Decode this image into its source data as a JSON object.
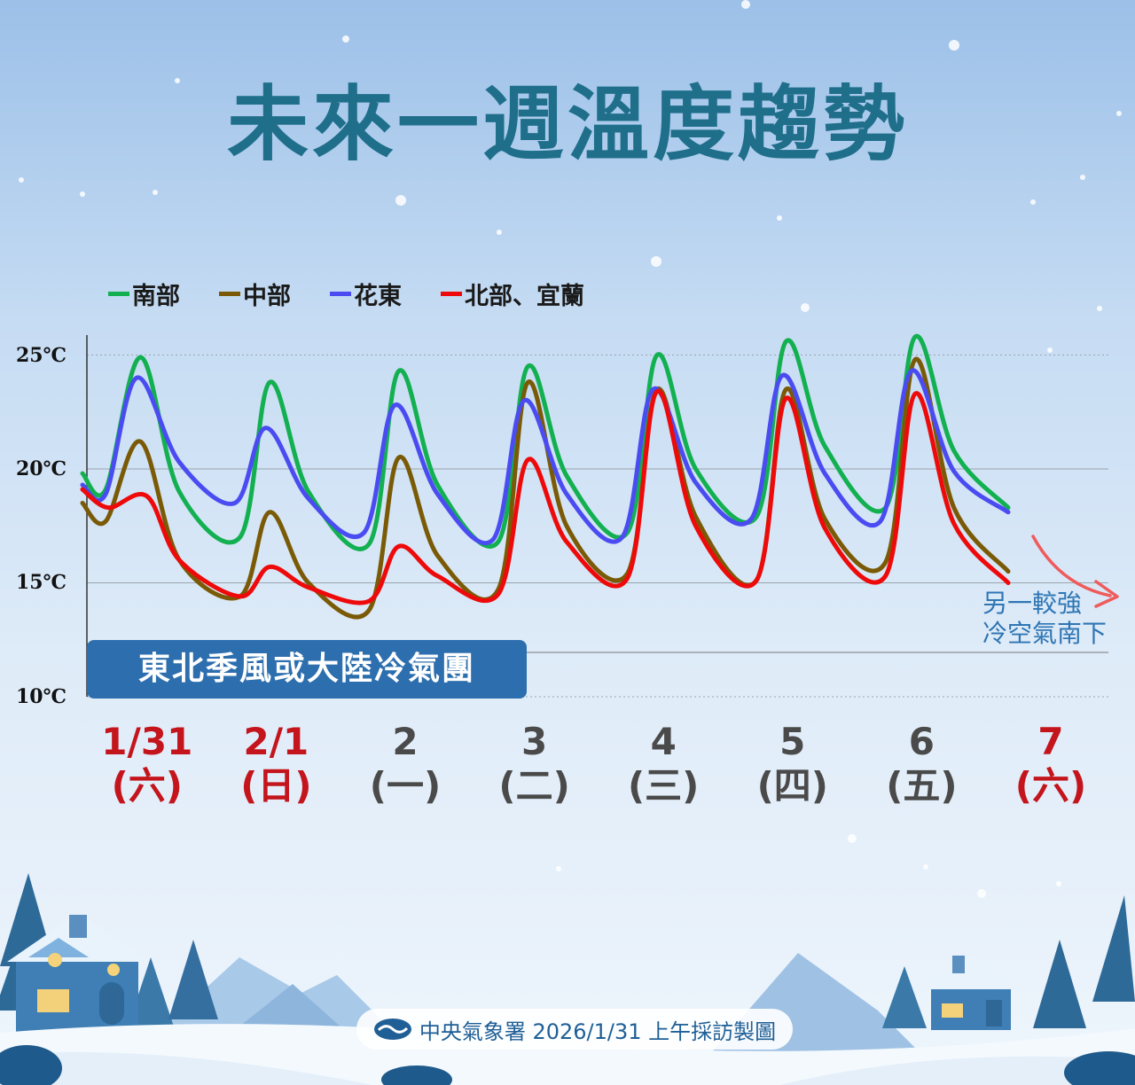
{
  "title": "未來一週溫度趨勢",
  "legend": [
    {
      "label": "南部",
      "color": "#12b050"
    },
    {
      "label": "中部",
      "color": "#7a5a06"
    },
    {
      "label": "花東",
      "color": "#4a4cf2"
    },
    {
      "label": "北部、宜蘭",
      "color": "#ee0a0a"
    }
  ],
  "y_labels": [
    "25℃",
    "20℃",
    "15℃",
    "10℃"
  ],
  "banner": "東北季風或大陸冷氣團",
  "note": {
    "line1": "另一較強",
    "line2": "冷空氣南下"
  },
  "footer": {
    "logo_icon": "cwa-logo-icon",
    "text": "中央氣象署  2026/1/31 上午採訪製圖"
  },
  "chart_data": {
    "type": "line",
    "title": "未來一週溫度趨勢",
    "ylim": [
      10,
      26
    ],
    "yticks": [
      10,
      15,
      20,
      25
    ],
    "grid": true,
    "legend_position": "top-left",
    "categories": [
      {
        "date": "1/31",
        "weekday": "(六)",
        "color": "#c4151d"
      },
      {
        "date": "2/1",
        "weekday": "(日)",
        "color": "#c4151d"
      },
      {
        "date": "2",
        "weekday": "(一)",
        "color": "#4a4a4a"
      },
      {
        "date": "3",
        "weekday": "(二)",
        "color": "#4a4a4a"
      },
      {
        "date": "4",
        "weekday": "(三)",
        "color": "#4a4a4a"
      },
      {
        "date": "5",
        "weekday": "(四)",
        "color": "#4a4a4a"
      },
      {
        "date": "6",
        "weekday": "(五)",
        "color": "#4a4a4a"
      },
      {
        "date": "7",
        "weekday": "(六)",
        "color": "#c4151d"
      }
    ],
    "x_note": "x values are days since 1/31 00:00 (category i centred at day i + 0.5)",
    "series": [
      {
        "name": "南部",
        "color": "#12b050",
        "points": [
          [
            0,
            19.8
          ],
          [
            0.18,
            19.1
          ],
          [
            0.45,
            24.9
          ],
          [
            0.75,
            19.0
          ],
          [
            1.22,
            17.0
          ],
          [
            1.45,
            23.8
          ],
          [
            1.75,
            19.0
          ],
          [
            2.22,
            16.7
          ],
          [
            2.45,
            24.3
          ],
          [
            2.75,
            19.3
          ],
          [
            3.22,
            16.8
          ],
          [
            3.45,
            24.5
          ],
          [
            3.75,
            19.7
          ],
          [
            4.22,
            17.2
          ],
          [
            4.45,
            25.0
          ],
          [
            4.75,
            20.0
          ],
          [
            5.22,
            17.9
          ],
          [
            5.45,
            25.6
          ],
          [
            5.75,
            21.0
          ],
          [
            6.22,
            18.3
          ],
          [
            6.45,
            25.8
          ],
          [
            6.75,
            20.8
          ],
          [
            7.17,
            18.3
          ]
        ]
      },
      {
        "name": "中部",
        "color": "#7a5a06",
        "points": [
          [
            0,
            18.5
          ],
          [
            0.18,
            17.7
          ],
          [
            0.45,
            21.2
          ],
          [
            0.75,
            16.0
          ],
          [
            1.22,
            14.4
          ],
          [
            1.45,
            18.1
          ],
          [
            1.75,
            15.0
          ],
          [
            2.22,
            13.8
          ],
          [
            2.45,
            20.5
          ],
          [
            2.75,
            16.2
          ],
          [
            3.22,
            14.7
          ],
          [
            3.45,
            23.8
          ],
          [
            3.75,
            17.5
          ],
          [
            4.22,
            15.4
          ],
          [
            4.45,
            23.5
          ],
          [
            4.75,
            17.9
          ],
          [
            5.22,
            15.1
          ],
          [
            5.45,
            23.5
          ],
          [
            5.75,
            17.8
          ],
          [
            6.22,
            15.9
          ],
          [
            6.45,
            24.8
          ],
          [
            6.75,
            18.3
          ],
          [
            7.17,
            15.5
          ]
        ]
      },
      {
        "name": "花東",
        "color": "#4a4cf2",
        "points": [
          [
            0,
            19.3
          ],
          [
            0.18,
            18.9
          ],
          [
            0.42,
            24.0
          ],
          [
            0.75,
            20.3
          ],
          [
            1.18,
            18.5
          ],
          [
            1.42,
            21.8
          ],
          [
            1.75,
            18.7
          ],
          [
            2.18,
            17.2
          ],
          [
            2.42,
            22.8
          ],
          [
            2.75,
            18.9
          ],
          [
            3.18,
            16.9
          ],
          [
            3.42,
            23.0
          ],
          [
            3.75,
            18.9
          ],
          [
            4.18,
            17.0
          ],
          [
            4.42,
            23.5
          ],
          [
            4.75,
            19.4
          ],
          [
            5.18,
            17.8
          ],
          [
            5.42,
            24.1
          ],
          [
            5.75,
            19.8
          ],
          [
            6.18,
            17.7
          ],
          [
            6.42,
            24.3
          ],
          [
            6.75,
            19.9
          ],
          [
            7.17,
            18.1
          ]
        ]
      },
      {
        "name": "北部、宜蘭",
        "color": "#ee0a0a",
        "points": [
          [
            0,
            19.1
          ],
          [
            0.2,
            18.3
          ],
          [
            0.5,
            18.8
          ],
          [
            0.75,
            16.0
          ],
          [
            1.22,
            14.4
          ],
          [
            1.45,
            15.7
          ],
          [
            1.75,
            14.8
          ],
          [
            2.22,
            14.2
          ],
          [
            2.45,
            16.6
          ],
          [
            2.75,
            15.3
          ],
          [
            3.22,
            14.5
          ],
          [
            3.45,
            20.4
          ],
          [
            3.75,
            16.8
          ],
          [
            4.22,
            15.2
          ],
          [
            4.45,
            23.4
          ],
          [
            4.75,
            17.5
          ],
          [
            5.22,
            15.1
          ],
          [
            5.45,
            23.1
          ],
          [
            5.75,
            17.4
          ],
          [
            6.22,
            15.3
          ],
          [
            6.45,
            23.3
          ],
          [
            6.75,
            17.6
          ],
          [
            7.17,
            15.0
          ]
        ]
      }
    ]
  }
}
